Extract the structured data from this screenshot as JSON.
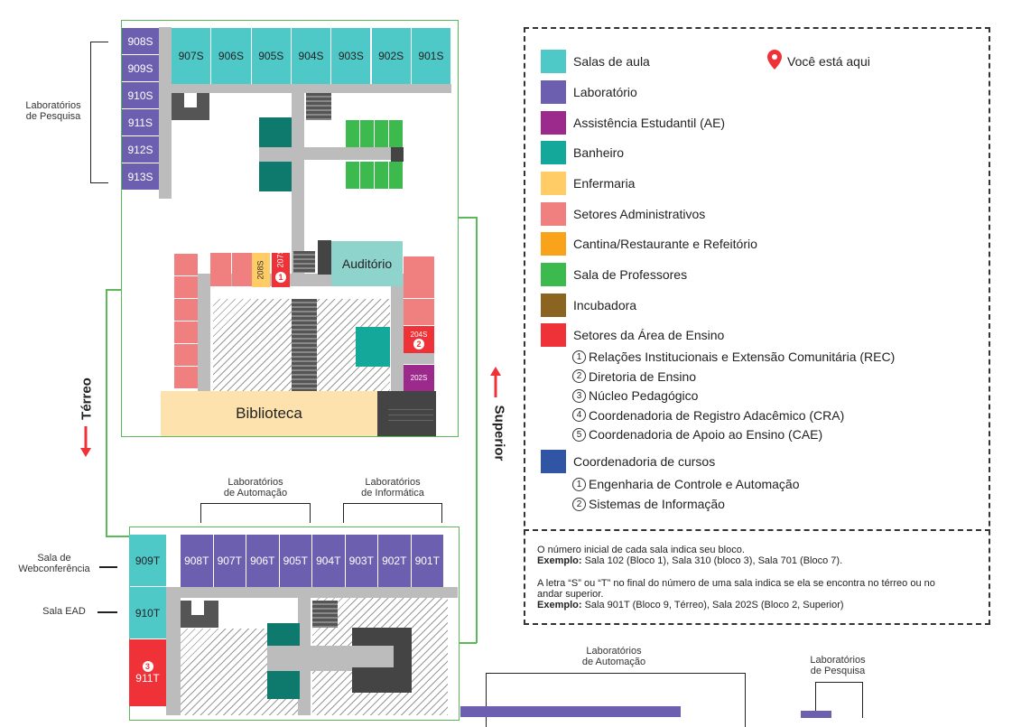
{
  "upper_building": {
    "top_rooms": [
      "907S",
      "906S",
      "905S",
      "904S",
      "903S",
      "902S",
      "901S"
    ],
    "left_rooms": [
      "908S",
      "909S",
      "910S",
      "911S",
      "912S",
      "913S"
    ],
    "label_room_208": "208S",
    "label_room_207": "207S",
    "label_room_207_num": "1",
    "auditorio": "Auditório",
    "label_room_204": "204S",
    "label_room_204_num": "2",
    "label_room_202": "202S",
    "biblioteca": "Biblioteca"
  },
  "side_labels": {
    "lab_pesquisa_top": "Laboratórios\nde Pesquisa",
    "lab_automacao_1": "Laboratórios\nde Automação",
    "lab_informatica": "Laboratórios\nde Informática",
    "sala_webconf": "Sala de\nWebconferência",
    "sala_ead": "Sala EAD",
    "lab_automacao_2": "Laboratórios\nde Automação",
    "lab_pesquisa_bottom": "Laboratórios\nde Pesquisa"
  },
  "floors": {
    "terreo": "Térreo",
    "superior": "Superior"
  },
  "lower_building": {
    "top_rooms": [
      "908T",
      "907T",
      "906T",
      "905T",
      "904T",
      "903T",
      "902T",
      "901T"
    ],
    "left_rooms": [
      "909T",
      "910T"
    ],
    "room_911": "911T",
    "room_911_num": "3"
  },
  "legend": {
    "you_are_here": "Você está aqui",
    "items": [
      {
        "label": "Salas de aula",
        "color": "#4fc9c8"
      },
      {
        "label": "Laboratório",
        "color": "#6c5fb0"
      },
      {
        "label": "Assistência Estudantil (AE)",
        "color": "#9b2a8c"
      },
      {
        "label": "Banheiro",
        "color": "#14a89a"
      },
      {
        "label": "Enfermaria",
        "color": "#ffcc66"
      },
      {
        "label": "Setores Administrativos",
        "color": "#f08080"
      },
      {
        "label": "Cantina/Restaurante e Refeitório",
        "color": "#f9a31a"
      },
      {
        "label": "Sala de Professores",
        "color": "#3dba4e"
      },
      {
        "label": "Incubadora",
        "color": "#8b6421"
      },
      {
        "label": "Setores da Área de Ensino",
        "color": "#ee3237"
      }
    ],
    "ensino_sub": [
      {
        "n": "1",
        "label": "Relações Institucionais e Extensão Comunitária (REC)"
      },
      {
        "n": "2",
        "label": "Diretoria de Ensino"
      },
      {
        "n": "3",
        "label": "Núcleo Pedagógico"
      },
      {
        "n": "4",
        "label": "Coordenadoria de Registro Adacêmico (CRA)"
      },
      {
        "n": "5",
        "label": "Coordenadoria de Apoio ao Ensino (CAE)"
      }
    ],
    "cursos": {
      "label": "Coordenadoria de cursos",
      "color": "#2f55a4"
    },
    "cursos_sub": [
      {
        "n": "1",
        "label": "Engenharia de Controle e Automação"
      },
      {
        "n": "2",
        "label": "Sistemas de Informação"
      }
    ]
  },
  "notes": {
    "line1": "O número inicial de cada sala indica seu bloco.",
    "ex1_bold": "Exemplo:",
    "ex1": " Sala 102 (Bloco 1), Sala 310 (bloco 3), Sala 701 (Bloco 7).",
    "line2": "A letra “S” ou “T” no final do número de uma sala indica se ela se encontra no térreo ou no andar superior.",
    "ex2_bold": "Exemplo:",
    "ex2": " Sala 901T (Bloco 9, Térreo), Sala 202S (Bloco 2, Superior)"
  }
}
